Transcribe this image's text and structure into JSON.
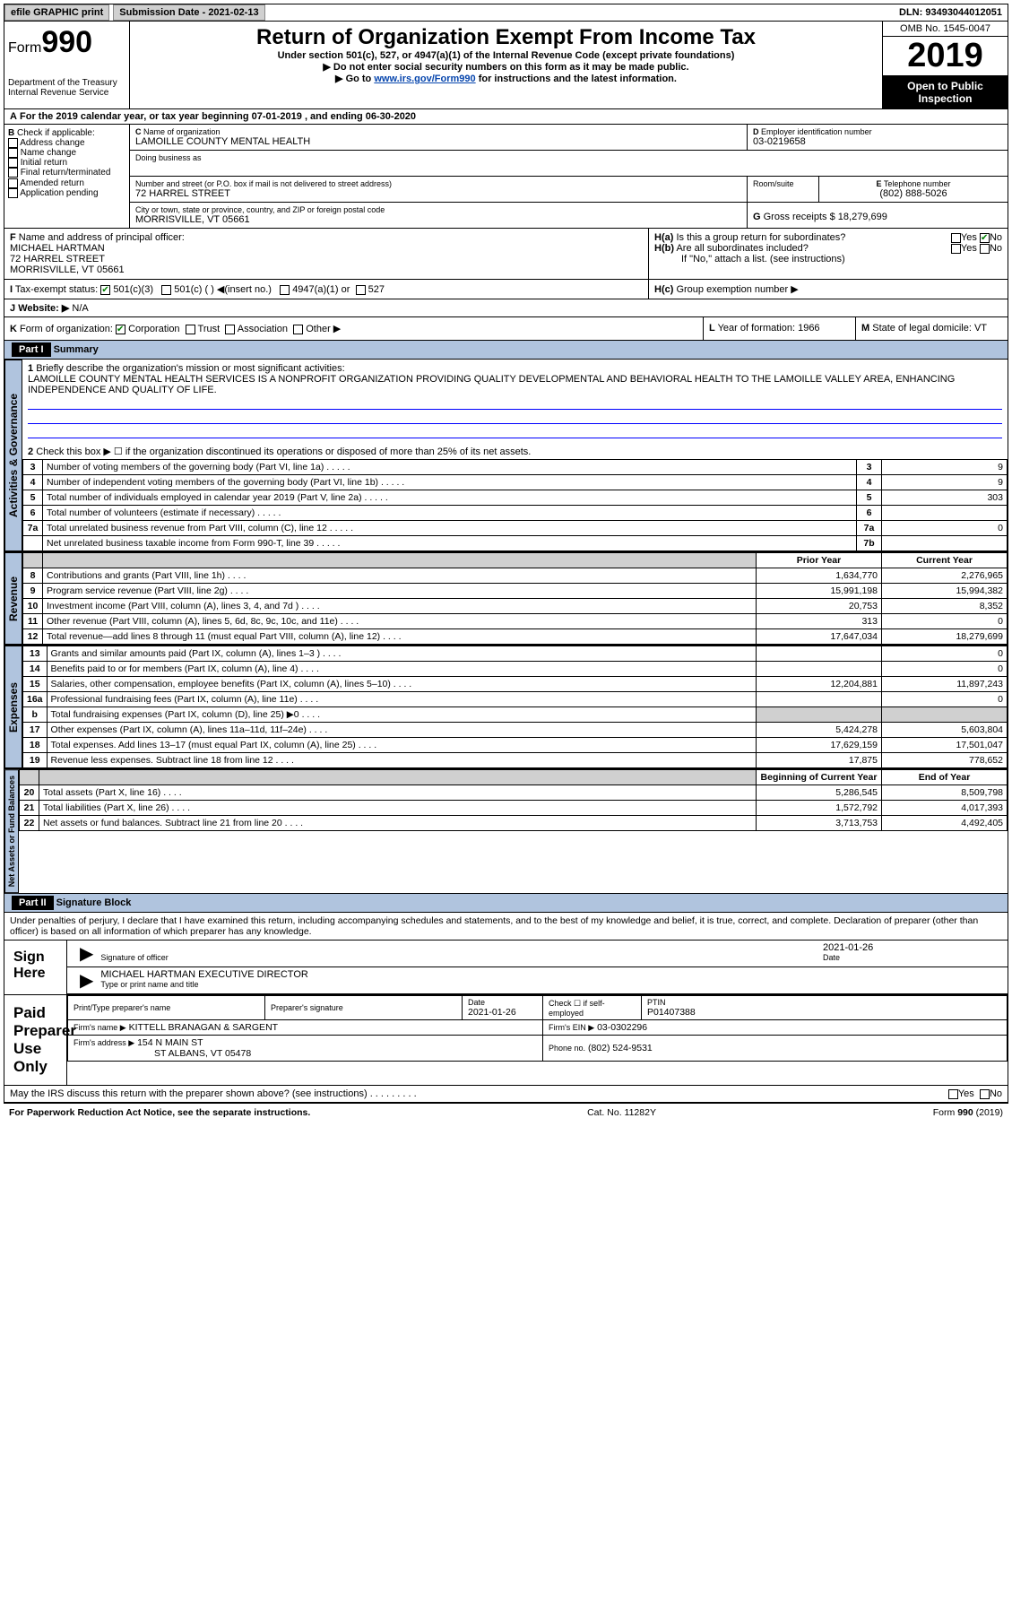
{
  "topbar": {
    "efile": "efile GRAPHIC print",
    "subdate_lbl": "Submission Date - 2021-02-13",
    "dln": "DLN: 93493044012051"
  },
  "header": {
    "form_prefix": "Form",
    "form_num": "990",
    "dept": "Department of the Treasury\nInternal Revenue Service",
    "title": "Return of Organization Exempt From Income Tax",
    "under": "Under section 501(c), 527, or 4947(a)(1) of the Internal Revenue Code (except private foundations)",
    "ssn": "Do not enter social security numbers on this form as it may be made public.",
    "goto": "Go to ",
    "goto_link": "www.irs.gov/Form990",
    "goto_after": " for instructions and the latest information.",
    "omb": "OMB No. 1545-0047",
    "year": "2019",
    "open": "Open to Public Inspection"
  },
  "periodA": "For the 2019 calendar year, or tax year beginning 07-01-2019    , and ending 06-30-2020",
  "B": {
    "hdr": "Check if applicable:",
    "items": [
      "Address change",
      "Name change",
      "Initial return",
      "Final return/terminated",
      "Amended return",
      "Application pending"
    ]
  },
  "C": {
    "name_lbl": "Name of organization",
    "name": "LAMOILLE COUNTY MENTAL HEALTH",
    "dba_lbl": "Doing business as",
    "street_lbl": "Number and street (or P.O. box if mail is not delivered to street address)",
    "room_lbl": "Room/suite",
    "street": "72 HARREL STREET",
    "city_lbl": "City or town, state or province, country, and ZIP or foreign postal code",
    "city": "MORRISVILLE, VT  05661"
  },
  "D": {
    "lbl": "Employer identification number",
    "val": "03-0219658"
  },
  "E": {
    "lbl": "Telephone number",
    "val": "(802) 888-5026"
  },
  "G": {
    "lbl": "Gross receipts $",
    "val": "18,279,699"
  },
  "F": {
    "lbl": "Name and address of principal officer:",
    "name": "MICHAEL HARTMAN",
    "street": "72 HARREL STREET",
    "city": "MORRISVILLE, VT  05661"
  },
  "H": {
    "a": "Is this a group return for subordinates?",
    "b": "Are all subordinates included?",
    "b_note": "If \"No,\" attach a list. (see instructions)",
    "c": "Group exemption number ▶",
    "yes": "Yes",
    "no": "No"
  },
  "I": {
    "lbl": "Tax-exempt status:",
    "opts": [
      "501(c)(3)",
      "501(c) (  ) ◀(insert no.)",
      "4947(a)(1) or",
      "527"
    ]
  },
  "J": {
    "lbl": "Website: ▶",
    "val": "N/A"
  },
  "K": {
    "lbl": "Form of organization:",
    "opts": [
      "Corporation",
      "Trust",
      "Association",
      "Other ▶"
    ]
  },
  "L": {
    "lbl": "Year of formation:",
    "val": "1966"
  },
  "M": {
    "lbl": "State of legal domicile:",
    "val": "VT"
  },
  "partI": {
    "hdr": "Part I",
    "title": "Summary",
    "line1_lbl": "Briefly describe the organization's mission or most significant activities:",
    "line1": "LAMOILLE COUNTY MENTAL HEALTH SERVICES IS A NONPROFIT ORGANIZATION PROVIDING QUALITY DEVELOPMENTAL AND BEHAVIORAL HEALTH TO THE LAMOILLE VALLEY AREA, ENHANCING INDEPENDENCE AND QUALITY OF LIFE.",
    "line2": "Check this box ▶ ☐ if the organization discontinued its operations or disposed of more than 25% of its net assets.",
    "tabs": {
      "ag": "Activities & Governance",
      "rev": "Revenue",
      "exp": "Expenses",
      "na": "Net Assets or Fund Balances"
    },
    "col_prior": "Prior Year",
    "col_current": "Current Year",
    "col_begin": "Beginning of Current Year",
    "col_end": "End of Year",
    "rows_ag": [
      {
        "n": "3",
        "d": "Number of voting members of the governing body (Part VI, line 1a)",
        "r": "3",
        "v": "9"
      },
      {
        "n": "4",
        "d": "Number of independent voting members of the governing body (Part VI, line 1b)",
        "r": "4",
        "v": "9"
      },
      {
        "n": "5",
        "d": "Total number of individuals employed in calendar year 2019 (Part V, line 2a)",
        "r": "5",
        "v": "303"
      },
      {
        "n": "6",
        "d": "Total number of volunteers (estimate if necessary)",
        "r": "6",
        "v": ""
      },
      {
        "n": "7a",
        "d": "Total unrelated business revenue from Part VIII, column (C), line 12",
        "r": "7a",
        "v": "0"
      },
      {
        "n": "",
        "d": "Net unrelated business taxable income from Form 990-T, line 39",
        "r": "7b",
        "v": ""
      }
    ],
    "rows_rev": [
      {
        "n": "8",
        "d": "Contributions and grants (Part VIII, line 1h)",
        "p": "1,634,770",
        "c": "2,276,965"
      },
      {
        "n": "9",
        "d": "Program service revenue (Part VIII, line 2g)",
        "p": "15,991,198",
        "c": "15,994,382"
      },
      {
        "n": "10",
        "d": "Investment income (Part VIII, column (A), lines 3, 4, and 7d )",
        "p": "20,753",
        "c": "8,352"
      },
      {
        "n": "11",
        "d": "Other revenue (Part VIII, column (A), lines 5, 6d, 8c, 9c, 10c, and 11e)",
        "p": "313",
        "c": "0"
      },
      {
        "n": "12",
        "d": "Total revenue—add lines 8 through 11 (must equal Part VIII, column (A), line 12)",
        "p": "17,647,034",
        "c": "18,279,699"
      }
    ],
    "rows_exp": [
      {
        "n": "13",
        "d": "Grants and similar amounts paid (Part IX, column (A), lines 1–3 )",
        "p": "",
        "c": "0"
      },
      {
        "n": "14",
        "d": "Benefits paid to or for members (Part IX, column (A), line 4)",
        "p": "",
        "c": "0"
      },
      {
        "n": "15",
        "d": "Salaries, other compensation, employee benefits (Part IX, column (A), lines 5–10)",
        "p": "12,204,881",
        "c": "11,897,243"
      },
      {
        "n": "16a",
        "d": "Professional fundraising fees (Part IX, column (A), line 11e)",
        "p": "",
        "c": "0"
      },
      {
        "n": "b",
        "d": "Total fundraising expenses (Part IX, column (D), line 25) ▶0",
        "p": "shade",
        "c": "shade"
      },
      {
        "n": "17",
        "d": "Other expenses (Part IX, column (A), lines 11a–11d, 11f–24e)",
        "p": "5,424,278",
        "c": "5,603,804"
      },
      {
        "n": "18",
        "d": "Total expenses. Add lines 13–17 (must equal Part IX, column (A), line 25)",
        "p": "17,629,159",
        "c": "17,501,047"
      },
      {
        "n": "19",
        "d": "Revenue less expenses. Subtract line 18 from line 12",
        "p": "17,875",
        "c": "778,652"
      }
    ],
    "rows_na": [
      {
        "n": "20",
        "d": "Total assets (Part X, line 16)",
        "p": "5,286,545",
        "c": "8,509,798"
      },
      {
        "n": "21",
        "d": "Total liabilities (Part X, line 26)",
        "p": "1,572,792",
        "c": "4,017,393"
      },
      {
        "n": "22",
        "d": "Net assets or fund balances. Subtract line 21 from line 20",
        "p": "3,713,753",
        "c": "4,492,405"
      }
    ]
  },
  "partII": {
    "hdr": "Part II",
    "title": "Signature Block",
    "decl": "Under penalties of perjury, I declare that I have examined this return, including accompanying schedules and statements, and to the best of my knowledge and belief, it is true, correct, and complete. Declaration of preparer (other than officer) is based on all information of which preparer has any knowledge.",
    "sign_here": "Sign Here",
    "sig_lbl": "Signature of officer",
    "date_lbl": "Date",
    "sig_date": "2021-01-26",
    "name": "MICHAEL HARTMAN  EXECUTIVE DIRECTOR",
    "name_lbl": "Type or print name and title",
    "paid": "Paid Preparer Use Only",
    "prep_name_lbl": "Print/Type preparer's name",
    "prep_sig_lbl": "Preparer's signature",
    "prep_date_lbl": "Date",
    "prep_date": "2021-01-26",
    "check_lbl": "Check ☐ if self-employed",
    "ptin_lbl": "PTIN",
    "ptin": "P01407388",
    "firm_lbl": "Firm's name   ▶",
    "firm": "KITTELL BRANAGAN & SARGENT",
    "ein_lbl": "Firm's EIN ▶",
    "ein": "03-0302296",
    "addr_lbl": "Firm's address ▶",
    "addr1": "154 N MAIN ST",
    "addr2": "ST ALBANS, VT  05478",
    "phone_lbl": "Phone no.",
    "phone": "(802) 524-9531",
    "discuss": "May the IRS discuss this return with the preparer shown above? (see instructions)"
  },
  "footer": {
    "pra": "For Paperwork Reduction Act Notice, see the separate instructions.",
    "cat": "Cat. No. 11282Y",
    "form": "Form 990 (2019)"
  }
}
